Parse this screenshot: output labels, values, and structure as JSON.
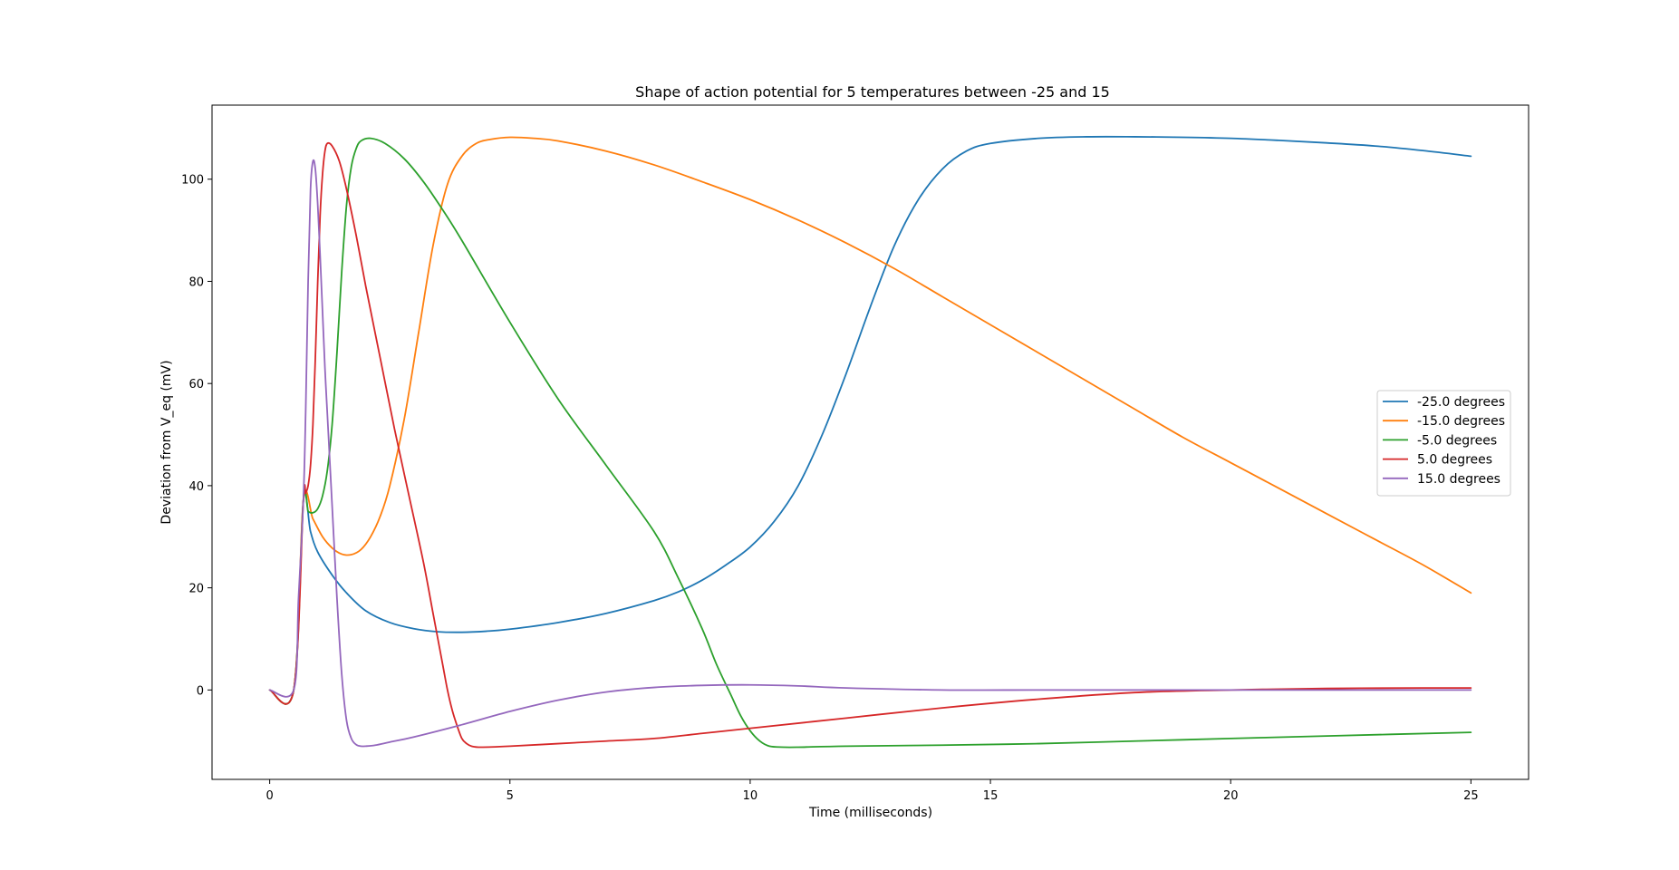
{
  "chart_data": {
    "type": "line",
    "title": "Shape of action potential for 5 temperatures between -25 and 15",
    "xlabel": "Time (milliseconds)",
    "ylabel": "Deviation from V_eq (mV)",
    "xlim": [
      -1.2,
      26.2
    ],
    "ylim": [
      -17.5,
      114.5
    ],
    "xticks": [
      0,
      5,
      10,
      15,
      20,
      25
    ],
    "yticks": [
      0,
      20,
      40,
      60,
      80,
      100
    ],
    "grid": false,
    "legend_position": "center-right",
    "series": [
      {
        "name": "-25.0 degrees",
        "color": "#1f77b4",
        "x": [
          0,
          0.5,
          0.7,
          0.85,
          1.0,
          1.3,
          1.6,
          2.0,
          2.5,
          3.0,
          3.5,
          4.0,
          4.5,
          5.0,
          6.0,
          7.0,
          8.0,
          8.5,
          9.0,
          9.5,
          10.0,
          10.5,
          11.0,
          11.5,
          12.0,
          12.5,
          13.0,
          13.5,
          14.0,
          14.5,
          15.0,
          16.0,
          17.0,
          18.0,
          19.0,
          20.0,
          21.0,
          22.0,
          23.0,
          24.0,
          25.0
        ],
        "y": [
          0,
          0,
          37,
          31,
          27,
          22.5,
          19,
          15.5,
          13.2,
          12,
          11.4,
          11.3,
          11.5,
          11.9,
          13.2,
          15,
          17.5,
          19.2,
          21.5,
          24.5,
          28,
          33,
          40,
          50,
          62,
          75,
          87,
          96,
          102,
          105.5,
          107,
          108,
          108.3,
          108.3,
          108.2,
          108,
          107.6,
          107.1,
          106.5,
          105.6,
          104.5
        ]
      },
      {
        "name": "-15.0 degrees",
        "color": "#ff7f0e",
        "x": [
          0,
          0.5,
          0.7,
          0.9,
          1.1,
          1.3,
          1.5,
          1.7,
          1.9,
          2.1,
          2.3,
          2.5,
          2.8,
          3.1,
          3.4,
          3.7,
          4.0,
          4.3,
          4.6,
          5.0,
          5.5,
          6.0,
          7.0,
          8.0,
          9.0,
          10.0,
          11.0,
          12.0,
          13.0,
          14.0,
          15.0,
          16.0,
          17.0,
          18.0,
          19.0,
          20.0,
          21.0,
          22.0,
          23.0,
          24.0,
          25.0
        ],
        "y": [
          0,
          0,
          37,
          33.5,
          30,
          27.8,
          26.6,
          26.5,
          27.5,
          30,
          34,
          40,
          53,
          70,
          87,
          99,
          104.5,
          107,
          107.8,
          108.2,
          108,
          107.5,
          105.5,
          102.8,
          99.5,
          96,
          92,
          87.5,
          82.5,
          77,
          71.5,
          66,
          60.5,
          55,
          49.5,
          44.5,
          39.5,
          34.5,
          29.5,
          24.5,
          19
        ]
      },
      {
        "name": "-5.0 degrees",
        "color": "#2ca02c",
        "x": [
          0,
          0.5,
          0.7,
          0.8,
          0.9,
          1.0,
          1.1,
          1.2,
          1.3,
          1.4,
          1.5,
          1.6,
          1.7,
          1.8,
          1.9,
          2.1,
          2.4,
          2.8,
          3.2,
          3.6,
          4.0,
          5.0,
          6.0,
          7.0,
          8.0,
          8.5,
          9.0,
          9.3,
          9.6,
          9.8,
          10.0,
          10.2,
          10.4,
          10.7,
          11.0,
          12.0,
          14.0,
          16.0,
          18.0,
          20.0,
          22.0,
          25.0
        ],
        "y": [
          0,
          0,
          37,
          35,
          34.7,
          35.5,
          38,
          43,
          52,
          66,
          82,
          95,
          102.5,
          106,
          107.5,
          108,
          107,
          104,
          99.5,
          94,
          88,
          72,
          57,
          44,
          31,
          22,
          12,
          5,
          -1,
          -5,
          -8,
          -10,
          -11,
          -11.2,
          -11.2,
          -11,
          -10.8,
          -10.5,
          -10,
          -9.5,
          -9,
          -8.3
        ]
      },
      {
        "name": "5.0 degrees",
        "color": "#d62728",
        "x": [
          0,
          0.5,
          0.7,
          0.75,
          0.8,
          0.85,
          0.9,
          0.95,
          1.0,
          1.05,
          1.1,
          1.15,
          1.2,
          1.3,
          1.45,
          1.6,
          1.8,
          2.0,
          2.3,
          2.6,
          2.9,
          3.2,
          3.4,
          3.6,
          3.7,
          3.8,
          3.9,
          4.0,
          4.1,
          4.2,
          4.4,
          5.0,
          6.0,
          7.0,
          8.0,
          9.0,
          10.0,
          12.0,
          14.0,
          16.0,
          18.0,
          20.0,
          22.0,
          24.0,
          25.0
        ],
        "y": [
          0,
          0,
          37,
          38.5,
          40,
          44,
          52,
          65,
          80,
          93,
          101,
          105.5,
          107,
          106.5,
          103.5,
          98,
          89,
          79,
          65,
          51,
          38,
          25,
          15,
          5,
          0,
          -4,
          -7,
          -9.5,
          -10.5,
          -11,
          -11.2,
          -11,
          -10.5,
          -10,
          -9.5,
          -8.5,
          -7.5,
          -5.5,
          -3.5,
          -1.8,
          -0.5,
          0,
          0.3,
          0.4,
          0.4
        ]
      },
      {
        "name": "15.0 degrees",
        "color": "#9467bd",
        "x": [
          0,
          0.5,
          0.6,
          0.7,
          0.75,
          0.8,
          0.85,
          0.9,
          0.95,
          1.0,
          1.05,
          1.1,
          1.15,
          1.2,
          1.3,
          1.4,
          1.5,
          1.6,
          1.7,
          1.8,
          1.9,
          2.0,
          2.2,
          2.5,
          3.0,
          4.0,
          5.0,
          6.0,
          7.0,
          8.0,
          9.0,
          10.0,
          11.0,
          12.0,
          14.0,
          16.0,
          18.0,
          20.0,
          22.0,
          25.0
        ],
        "y": [
          0,
          0,
          18,
          37,
          55,
          80,
          98,
          103.5,
          102,
          95,
          85,
          74,
          63,
          54,
          36,
          18,
          3,
          -6,
          -9.5,
          -10.7,
          -11,
          -11,
          -10.8,
          -10.2,
          -9.2,
          -6.8,
          -4.2,
          -2,
          -0.4,
          0.5,
          0.9,
          1,
          0.8,
          0.4,
          0,
          0,
          0,
          0,
          0,
          0
        ]
      }
    ]
  }
}
